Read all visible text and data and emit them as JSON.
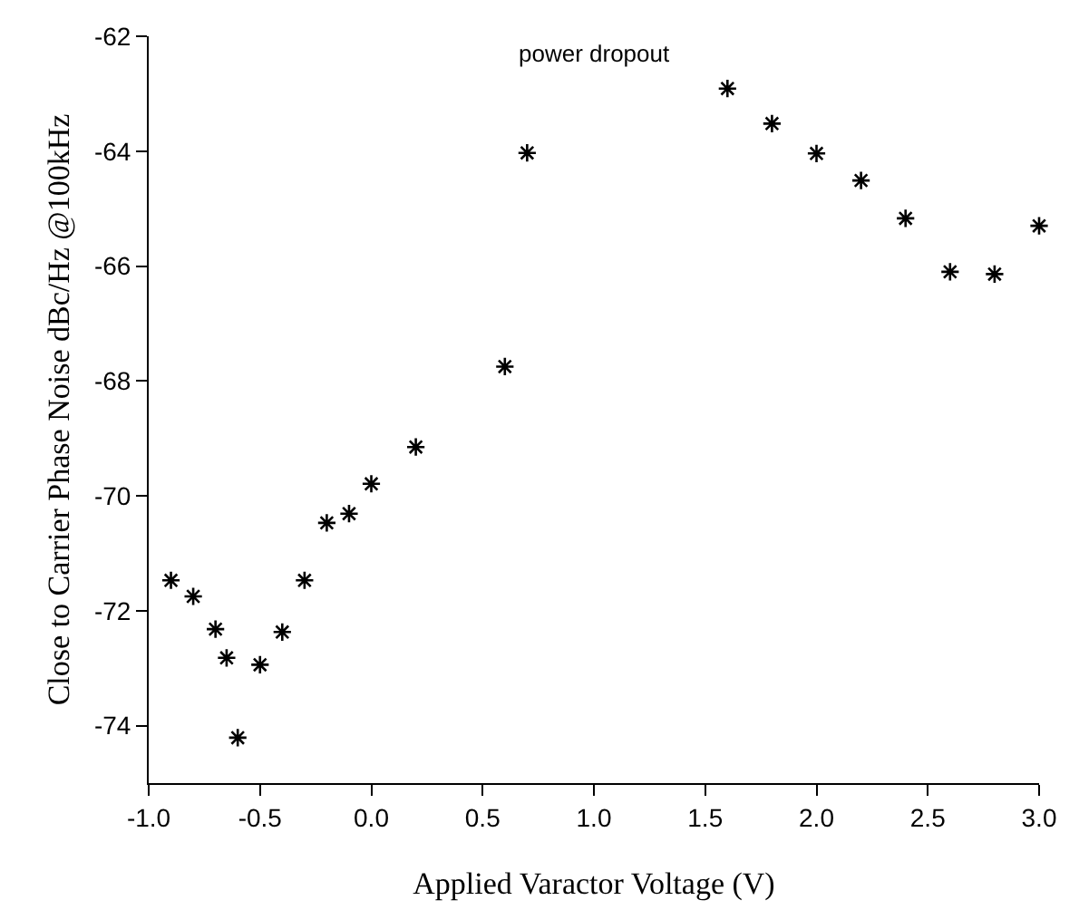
{
  "chart_data": {
    "type": "scatter",
    "title": "power dropout",
    "xlabel": "Applied Varactor Voltage (V)",
    "ylabel": "Close to Carrier Phase Noise dBc/Hz @100kHz",
    "x": [
      -0.9,
      -0.8,
      -0.7,
      -0.65,
      -0.6,
      -0.5,
      -0.4,
      -0.3,
      -0.2,
      -0.1,
      0.0,
      0.2,
      0.6,
      0.7,
      1.6,
      1.8,
      2.0,
      2.2,
      2.4,
      2.6,
      2.8,
      3.0
    ],
    "series": [
      {
        "color": "#000000",
        "values": [
          -71.47,
          -71.75,
          -72.32,
          -72.82,
          -74.21,
          -72.94,
          -72.37,
          -71.47,
          -70.47,
          -70.31,
          -69.79,
          -69.15,
          -67.75,
          -64.03,
          -62.91,
          -63.52,
          -64.04,
          -64.51,
          -65.17,
          -66.1,
          -66.14,
          -65.3
        ]
      }
    ],
    "xlim": [
      -1.0,
      3.0
    ],
    "xticks": [
      {
        "value": -1,
        "label": "-1.0"
      },
      {
        "value": -0.5,
        "label": "-0.5"
      },
      {
        "value": 0,
        "label": "0.0"
      },
      {
        "value": 0.5,
        "label": "0.5"
      },
      {
        "value": 1,
        "label": "1.0"
      },
      {
        "value": 1.5,
        "label": "1.5"
      },
      {
        "value": 2,
        "label": "2.0"
      },
      {
        "value": 2.5,
        "label": "2.5"
      },
      {
        "value": 3,
        "label": "3.0"
      }
    ],
    "ylim": [
      -75,
      -62
    ],
    "yticks": [
      -74,
      -72,
      -70,
      -68,
      -66,
      -64,
      -62
    ],
    "grid": false,
    "marker": "cross"
  }
}
